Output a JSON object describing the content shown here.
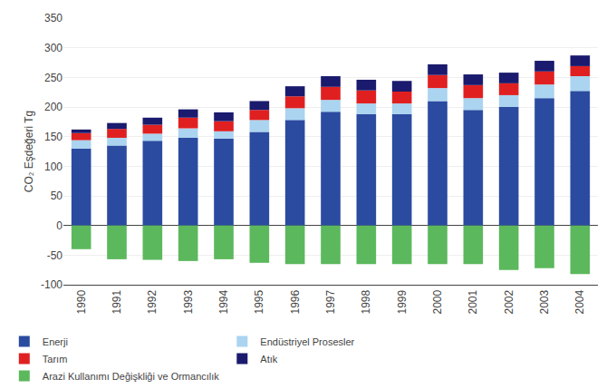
{
  "chart_data": {
    "type": "bar",
    "stacked": true,
    "categories": [
      "1990",
      "1991",
      "1992",
      "1993",
      "1994",
      "1995",
      "1996",
      "1997",
      "1998",
      "1999",
      "2000",
      "2001",
      "2002",
      "2003",
      "2004"
    ],
    "series": [
      {
        "name": "Enerji",
        "color": "#2b4ba0",
        "values": [
          130,
          135,
          143,
          148,
          147,
          158,
          178,
          192,
          188,
          188,
          210,
          195,
          200,
          215,
          227
        ]
      },
      {
        "name": "Endüstriyel Prosesler",
        "color": "#aad4f0",
        "values": [
          14,
          13,
          12,
          16,
          12,
          20,
          20,
          20,
          18,
          18,
          22,
          20,
          20,
          23,
          25
        ]
      },
      {
        "name": "Tarım",
        "color": "#e02020",
        "values": [
          12,
          15,
          15,
          18,
          17,
          17,
          20,
          22,
          22,
          20,
          22,
          22,
          20,
          22,
          17
        ]
      },
      {
        "name": "Atık",
        "color": "#1a1a6e",
        "values": [
          6,
          10,
          12,
          14,
          15,
          15,
          17,
          18,
          18,
          18,
          18,
          18,
          18,
          18,
          18
        ]
      },
      {
        "name": "Arazi Kullanımı Değişkliği ve Ormancılık",
        "color": "#5cb85c",
        "values": [
          -40,
          -57,
          -58,
          -60,
          -57,
          -63,
          -65,
          -65,
          -65,
          -65,
          -65,
          -65,
          -75,
          -72,
          -82
        ]
      }
    ],
    "ylabel": "CO₂ Eşdeğeri Tg",
    "ylim": [
      -100,
      350
    ],
    "yticks": [
      -100,
      -50,
      0,
      50,
      100,
      150,
      200,
      250,
      300,
      350
    ],
    "grid": true,
    "legend": "bottom"
  }
}
